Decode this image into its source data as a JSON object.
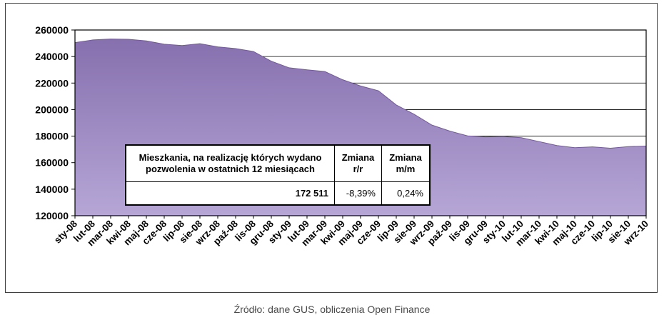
{
  "caption": "Źródło: dane GUS, obliczenia Open Finance",
  "table": {
    "header": [
      "Mieszkania, na realizację których wydano pozwolenia w ostatnich 12 miesiącach",
      "Zmiana r/r",
      "Zmiana m/m"
    ],
    "row": [
      "172 511",
      "-8,39%",
      "0,24%"
    ]
  },
  "colors": {
    "area_fill_top": "#8670ae",
    "area_fill_bottom": "#b6a6d6",
    "area_outline": "#74589f",
    "grid": "#000000",
    "axis": "#000000",
    "frame": "#3f3f3f",
    "caption_text": "#4a4a4a"
  },
  "chart_data": {
    "type": "area",
    "title": "",
    "xlabel": "",
    "ylabel": "",
    "ylim": [
      120000,
      260000
    ],
    "ytick_step": 20000,
    "grid": true,
    "legend_position": "none",
    "x": [
      "sty-08",
      "lut-08",
      "mar-08",
      "kwi-08",
      "maj-08",
      "cze-08",
      "lip-08",
      "sie-08",
      "wrz-08",
      "paź-08",
      "lis-08",
      "gru-08",
      "sty-09",
      "lut-09",
      "mar-09",
      "kwi-09",
      "maj-09",
      "cze-09",
      "lip-09",
      "sie-09",
      "wrz-09",
      "paź-09",
      "lis-09",
      "gru-09",
      "sty-10",
      "lut-10",
      "mar-10",
      "kwi-10",
      "maj-10",
      "cze-10",
      "lip-10",
      "sie-10",
      "wrz-10"
    ],
    "series": [
      {
        "name": "Mieszkania, na realizację których wydano pozwolenia w ostatnich 12 miesiącach",
        "values": [
          250500,
          252500,
          253200,
          253000,
          251800,
          249300,
          248300,
          249700,
          247300,
          246000,
          243800,
          236500,
          231500,
          230000,
          228700,
          222500,
          217800,
          214200,
          203500,
          196500,
          188300,
          183800,
          180200,
          179400,
          179700,
          178800,
          175900,
          172900,
          171300,
          171900,
          170900,
          172100,
          172511
        ]
      }
    ]
  }
}
